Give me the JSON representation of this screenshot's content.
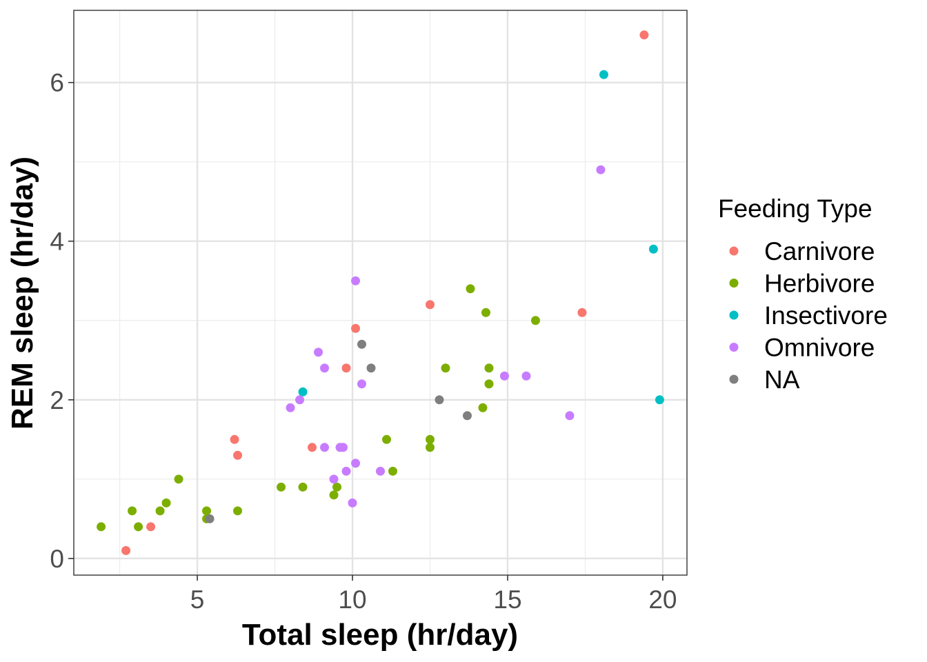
{
  "chart_data": {
    "type": "scatter",
    "title": "",
    "xlabel": "Total sleep (hr/day)",
    "ylabel": "REM sleep (hr/day)",
    "xlim": [
      1.02,
      20.78
    ],
    "ylim": [
      -0.21,
      6.91
    ],
    "x_ticks": [
      5,
      10,
      15,
      20
    ],
    "y_ticks": [
      0,
      2,
      4,
      6
    ],
    "grid": true,
    "legend": {
      "title": "Feeding Type",
      "position": "right"
    },
    "series": [
      {
        "name": "Carnivore",
        "color": "#F8766D",
        "x": [
          19.4,
          17.4,
          12.5,
          10.1,
          9.8,
          6.2,
          6.3,
          8.7,
          3.5,
          2.7
        ],
        "y": [
          6.6,
          3.1,
          3.2,
          2.9,
          2.4,
          1.5,
          1.3,
          1.4,
          0.4,
          0.1
        ]
      },
      {
        "name": "Herbivore",
        "color": "#7CAE00",
        "x": [
          13.8,
          14.3,
          15.9,
          13.0,
          14.4,
          14.4,
          14.2,
          11.1,
          12.5,
          12.5,
          11.3,
          7.7,
          8.4,
          9.5,
          9.4,
          4.4,
          4.0,
          3.8,
          2.9,
          3.1,
          1.9,
          5.3,
          5.3,
          6.3
        ],
        "y": [
          3.4,
          3.1,
          3.0,
          2.4,
          2.4,
          2.2,
          1.9,
          1.5,
          1.5,
          1.4,
          1.1,
          0.9,
          0.9,
          0.9,
          0.8,
          1.0,
          0.7,
          0.6,
          0.6,
          0.4,
          0.4,
          0.6,
          0.5,
          0.6
        ]
      },
      {
        "name": "Insectivore",
        "color": "#00BFC4",
        "x": [
          18.1,
          19.7,
          19.9,
          8.4
        ],
        "y": [
          6.1,
          3.9,
          2.0,
          2.1
        ]
      },
      {
        "name": "Omnivore",
        "color": "#C77CFF",
        "x": [
          18.0,
          10.1,
          8.9,
          9.1,
          10.3,
          8.3,
          8.0,
          14.9,
          15.6,
          17.0,
          9.1,
          9.6,
          9.7,
          10.1,
          9.8,
          10.9,
          9.4,
          10.0
        ],
        "y": [
          4.9,
          3.5,
          2.6,
          2.4,
          2.2,
          2.0,
          1.9,
          2.3,
          2.3,
          1.8,
          1.4,
          1.4,
          1.4,
          1.2,
          1.1,
          1.1,
          1.0,
          0.7
        ]
      },
      {
        "name": "NA",
        "color": "#7F7F7F",
        "x": [
          10.3,
          10.6,
          12.8,
          13.7,
          5.4
        ],
        "y": [
          2.7,
          2.4,
          2.0,
          1.8,
          0.5
        ]
      }
    ]
  }
}
